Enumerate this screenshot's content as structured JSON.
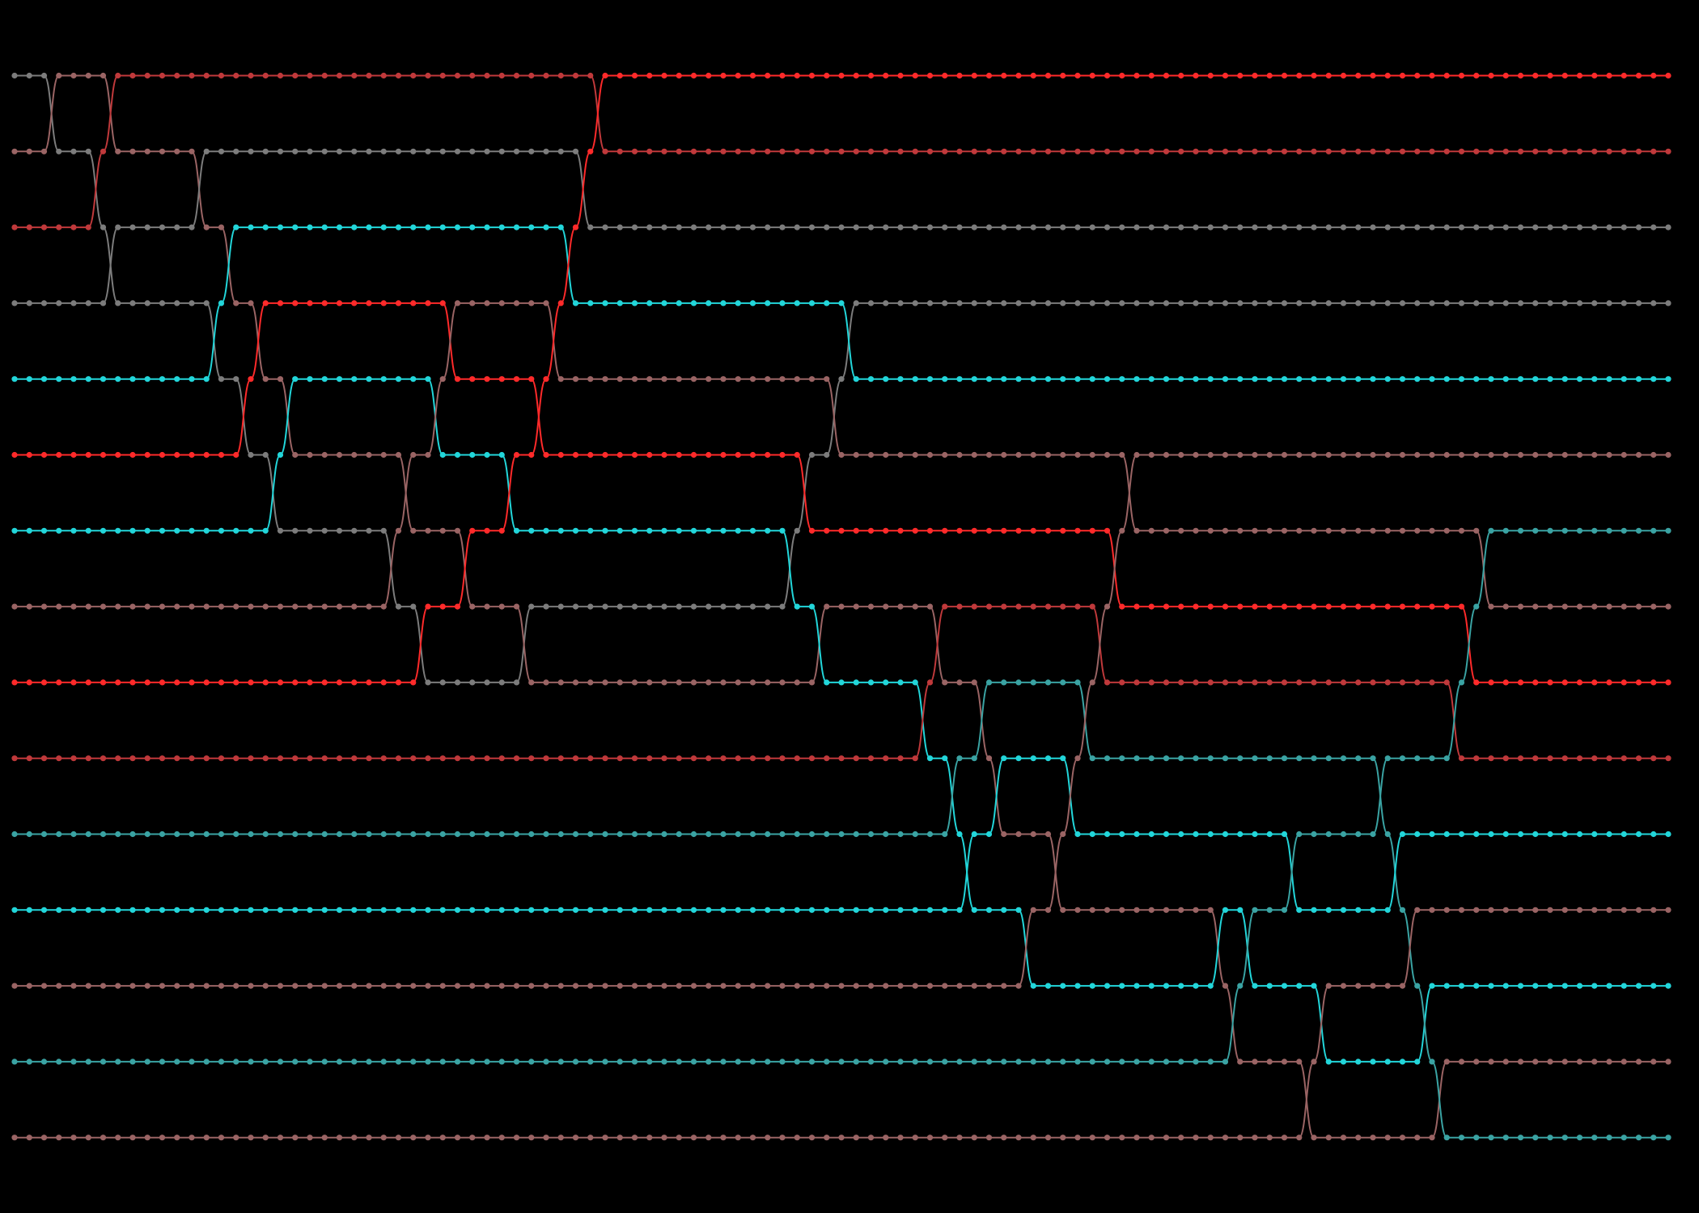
{
  "diagram": {
    "type": "sorting-network-trace",
    "background": "#000000",
    "rows": 15,
    "steps": 113,
    "colors": {
      "red": "#ff2a2a",
      "darkred": "#c0393b",
      "grey": "#7c7c7c",
      "rose": "#9a6464",
      "teal": "#3aa3a3",
      "cyan": "#22d6da"
    },
    "initial_colors": [
      "grey",
      "rose",
      "darkred",
      "grey",
      "cyan",
      "red",
      "cyan",
      "rose",
      "red",
      "darkred",
      "teal",
      "cyan",
      "rose",
      "teal",
      "rose"
    ],
    "swaps": [
      [
        2,
        0
      ],
      [
        5,
        1
      ],
      [
        6,
        0
      ],
      [
        6,
        2
      ],
      [
        12,
        1
      ],
      [
        13,
        3
      ],
      [
        14,
        2
      ],
      [
        15,
        4
      ],
      [
        16,
        3
      ],
      [
        17,
        5
      ],
      [
        18,
        4
      ],
      [
        25,
        6
      ],
      [
        26,
        5
      ],
      [
        27,
        7
      ],
      [
        28,
        4
      ],
      [
        29,
        3
      ],
      [
        30,
        6
      ],
      [
        33,
        5
      ],
      [
        34,
        7
      ],
      [
        35,
        4
      ],
      [
        36,
        3
      ],
      [
        37,
        2
      ],
      [
        38,
        1
      ],
      [
        39,
        0
      ],
      [
        52,
        6
      ],
      [
        53,
        5
      ],
      [
        54,
        7
      ],
      [
        55,
        4
      ],
      [
        56,
        3
      ],
      [
        61,
        8
      ],
      [
        62,
        7
      ],
      [
        63,
        9
      ],
      [
        64,
        10
      ],
      [
        65,
        8
      ],
      [
        66,
        9
      ],
      [
        68,
        11
      ],
      [
        70,
        10
      ],
      [
        71,
        9
      ],
      [
        72,
        8
      ],
      [
        73,
        7
      ],
      [
        74,
        6
      ],
      [
        75,
        5
      ],
      [
        81,
        11
      ],
      [
        82,
        12
      ],
      [
        83,
        11
      ],
      [
        86,
        10
      ],
      [
        87,
        13
      ],
      [
        88,
        12
      ],
      [
        92,
        9
      ],
      [
        93,
        10
      ],
      [
        94,
        11
      ],
      [
        95,
        12
      ],
      [
        96,
        13
      ],
      [
        97,
        8
      ],
      [
        98,
        7
      ],
      [
        99,
        6
      ]
    ]
  }
}
